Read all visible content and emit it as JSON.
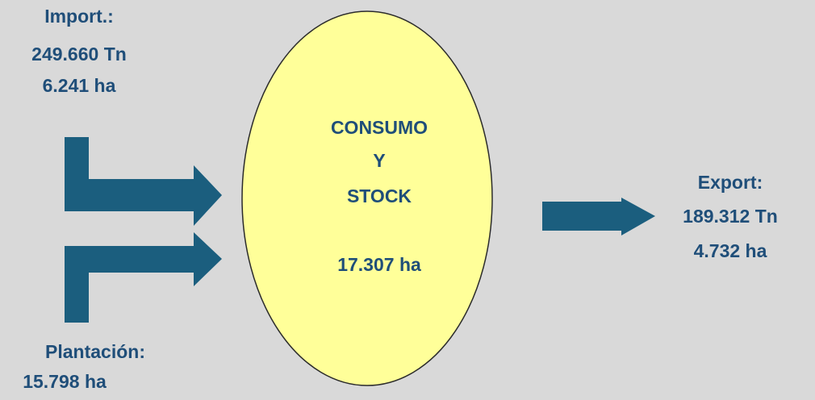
{
  "import": {
    "lines": [
      "Import.:",
      "249.660 Tn",
      "6.241 ha"
    ]
  },
  "plantation": {
    "lines": [
      "Plantación:",
      "15.798 ha"
    ]
  },
  "center": {
    "lines": [
      "CONSUMO",
      "Y",
      "STOCK"
    ],
    "area": "17.307 ha"
  },
  "export": {
    "lines": [
      "Export:",
      "189.312 Tn",
      "4.732 ha"
    ]
  }
}
